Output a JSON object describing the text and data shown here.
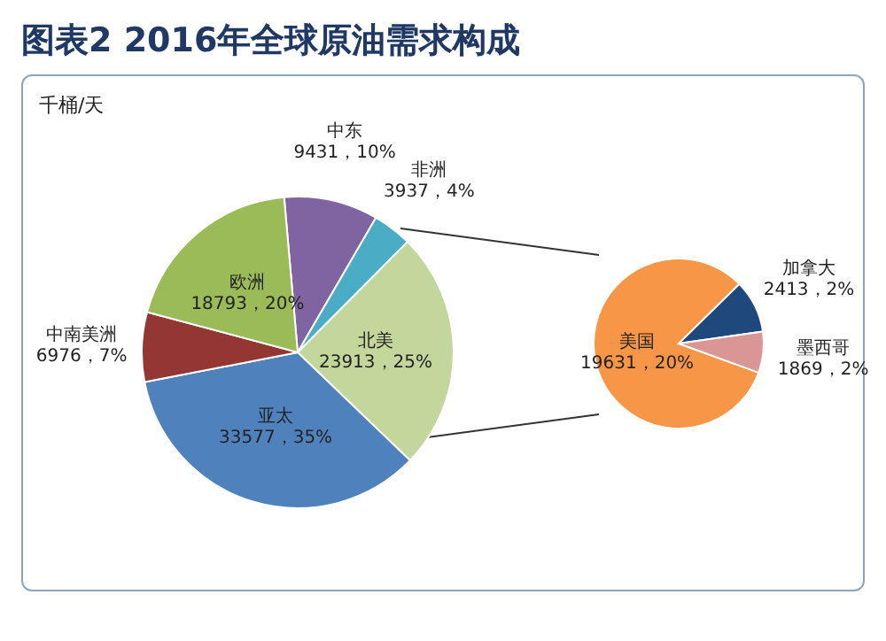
{
  "chart_data": [
    {
      "type": "pie",
      "title": "图表2 2016年全球原油需求构成",
      "annotations": [
        "千桶/天"
      ],
      "categories": [
        "中东",
        "非洲",
        "北美",
        "亚太",
        "中南美洲",
        "欧洲"
      ],
      "values": [
        9431,
        3937,
        23913,
        33577,
        6976,
        18793
      ],
      "value_labels": [
        "9431，10%",
        "3937，4%",
        "23913，25%",
        "33577，35%",
        "6976，7%",
        "18793，20%"
      ],
      "colors": [
        "#8064a2",
        "#4bacc6",
        "#c3d69b",
        "#4f81bd",
        "#943634",
        "#9bbb59"
      ]
    },
    {
      "type": "pie",
      "categories": [
        "美国",
        "加拿大",
        "墨西哥"
      ],
      "values": [
        19631,
        2413,
        1869
      ],
      "value_labels": [
        "19631，20%",
        "2413，2%",
        "1869，2%"
      ],
      "colors": [
        "#f79646",
        "#1f497d",
        "#d99694"
      ]
    }
  ]
}
